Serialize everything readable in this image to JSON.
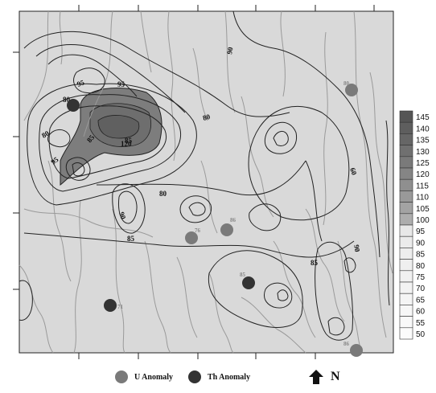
{
  "colors": {
    "background": "#d9d9d9",
    "contour": "#222222",
    "river": "#9a9a9a",
    "u_anomaly": "#7a7a7a",
    "th_anomaly": "#333333",
    "high_zone": "#7d7d7d"
  },
  "contour_labels": [
    "90",
    "95",
    "95",
    "80",
    "80",
    "80",
    "95",
    "85",
    "80",
    "60",
    "90",
    "85",
    "120",
    "85",
    "85",
    "90"
  ],
  "point_labels": [
    "76",
    "86",
    "85",
    "71",
    "86",
    "80"
  ],
  "color_scale": {
    "labels": [
      "145",
      "140",
      "135",
      "130",
      "125",
      "120",
      "115",
      "110",
      "105",
      "100",
      "95",
      "90",
      "85",
      "80",
      "75",
      "70",
      "65",
      "60",
      "55",
      "50"
    ],
    "colors": [
      "#555555",
      "#5e5e5e",
      "#666666",
      "#707070",
      "#7a7a7a",
      "#858585",
      "#8f8f8f",
      "#999999",
      "#a3a3a3",
      "#adadad",
      "#e8e8e8",
      "#ebebeb",
      "#ededed",
      "#efefef",
      "#f1f1f1",
      "#f3f3f3",
      "#f5f5f5",
      "#f7f7f7",
      "#f9f9f9",
      "#fbfbfb"
    ]
  },
  "legend": {
    "u_label": "U Anomaly",
    "th_label": "Th Anomaly",
    "north_label": "N",
    "north_icon": "north-arrow-icon"
  }
}
